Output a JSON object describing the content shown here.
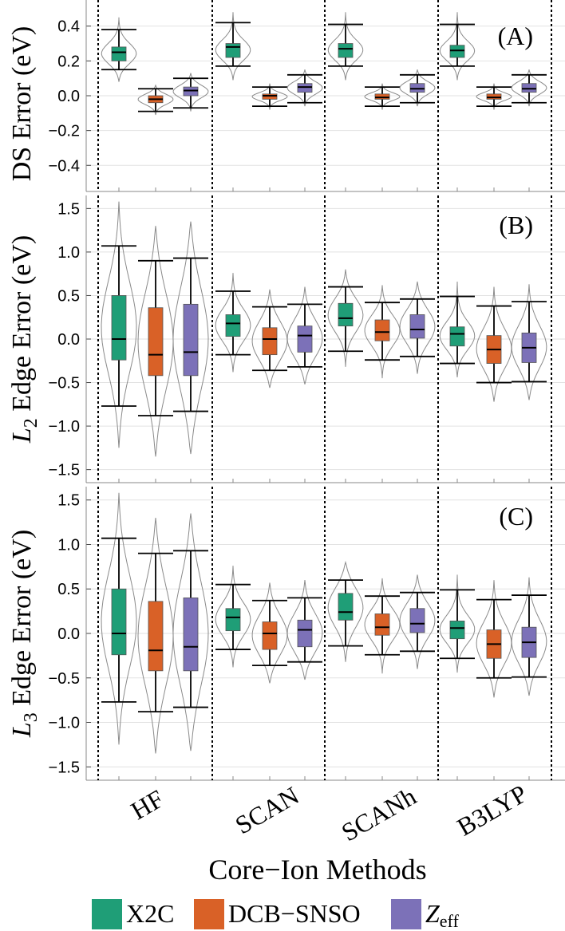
{
  "chart_data": [
    {
      "type": "box",
      "panel_label": "(A)",
      "ylabel": "DS Error (eV)",
      "ylim": [
        -0.55,
        0.55
      ],
      "yticks": [
        -0.4,
        -0.2,
        0.0,
        0.2,
        0.4
      ],
      "grid": true,
      "categories": [
        "HF",
        "SCAN",
        "SCANh",
        "B3LYP"
      ],
      "series": [
        {
          "name": "X2C",
          "boxes": [
            {
              "category": "HF",
              "whisker_low": 0.15,
              "q1": 0.2,
              "median": 0.25,
              "q3": 0.28,
              "whisker_high": 0.38,
              "violin_low": 0.08,
              "violin_high": 0.45
            },
            {
              "category": "SCAN",
              "whisker_low": 0.17,
              "q1": 0.22,
              "median": 0.28,
              "q3": 0.3,
              "whisker_high": 0.42,
              "violin_low": 0.09,
              "violin_high": 0.48
            },
            {
              "category": "SCANh",
              "whisker_low": 0.17,
              "q1": 0.22,
              "median": 0.27,
              "q3": 0.3,
              "whisker_high": 0.41,
              "violin_low": 0.09,
              "violin_high": 0.48
            },
            {
              "category": "B3LYP",
              "whisker_low": 0.17,
              "q1": 0.22,
              "median": 0.26,
              "q3": 0.29,
              "whisker_high": 0.41,
              "violin_low": 0.09,
              "violin_high": 0.48
            }
          ]
        },
        {
          "name": "DCB−SNSO",
          "boxes": [
            {
              "category": "HF",
              "whisker_low": -0.09,
              "q1": -0.04,
              "median": -0.02,
              "q3": 0.0,
              "whisker_high": 0.04,
              "violin_low": -0.11,
              "violin_high": 0.06
            },
            {
              "category": "SCAN",
              "whisker_low": -0.06,
              "q1": -0.02,
              "median": 0.0,
              "q3": 0.01,
              "whisker_high": 0.05,
              "violin_low": -0.08,
              "violin_high": 0.07
            },
            {
              "category": "SCANh",
              "whisker_low": -0.06,
              "q1": -0.02,
              "median": -0.01,
              "q3": 0.01,
              "whisker_high": 0.05,
              "violin_low": -0.08,
              "violin_high": 0.07
            },
            {
              "category": "B3LYP",
              "whisker_low": -0.06,
              "q1": -0.02,
              "median": -0.01,
              "q3": 0.01,
              "whisker_high": 0.05,
              "violin_low": -0.08,
              "violin_high": 0.07
            }
          ]
        },
        {
          "name": "Zeff",
          "boxes": [
            {
              "category": "HF",
              "whisker_low": -0.07,
              "q1": 0.0,
              "median": 0.03,
              "q3": 0.05,
              "whisker_high": 0.1,
              "violin_low": -0.09,
              "violin_high": 0.13
            },
            {
              "category": "SCAN",
              "whisker_low": -0.04,
              "q1": 0.02,
              "median": 0.05,
              "q3": 0.07,
              "whisker_high": 0.12,
              "violin_low": -0.06,
              "violin_high": 0.15
            },
            {
              "category": "SCANh",
              "whisker_low": -0.04,
              "q1": 0.02,
              "median": 0.04,
              "q3": 0.07,
              "whisker_high": 0.12,
              "violin_low": -0.06,
              "violin_high": 0.15
            },
            {
              "category": "B3LYP",
              "whisker_low": -0.04,
              "q1": 0.02,
              "median": 0.04,
              "q3": 0.07,
              "whisker_high": 0.12,
              "violin_low": -0.06,
              "violin_high": 0.15
            }
          ]
        }
      ]
    },
    {
      "type": "box",
      "panel_label": "(B)",
      "ylabel_main": "L",
      "ylabel_sub": "2",
      "ylabel_rest": " Edge Error (eV)",
      "ylim": [
        -1.65,
        1.65
      ],
      "yticks": [
        -1.5,
        -1.0,
        -0.5,
        0.0,
        0.5,
        1.0,
        1.5
      ],
      "grid": true,
      "categories": [
        "HF",
        "SCAN",
        "SCANh",
        "B3LYP"
      ],
      "series": [
        {
          "name": "X2C",
          "boxes": [
            {
              "category": "HF",
              "whisker_low": -0.77,
              "q1": -0.24,
              "median": 0.0,
              "q3": 0.5,
              "whisker_high": 1.07,
              "violin_low": -1.25,
              "violin_high": 1.58
            },
            {
              "category": "SCAN",
              "whisker_low": -0.18,
              "q1": 0.03,
              "median": 0.18,
              "q3": 0.28,
              "whisker_high": 0.55,
              "violin_low": -0.38,
              "violin_high": 0.76
            },
            {
              "category": "SCANh",
              "whisker_low": -0.14,
              "q1": 0.15,
              "median": 0.24,
              "q3": 0.41,
              "whisker_high": 0.6,
              "violin_low": -0.32,
              "violin_high": 0.8
            },
            {
              "category": "B3LYP",
              "whisker_low": -0.28,
              "q1": -0.08,
              "median": 0.06,
              "q3": 0.14,
              "whisker_high": 0.49,
              "violin_low": -0.44,
              "violin_high": 0.66
            }
          ]
        },
        {
          "name": "DCB−SNSO",
          "boxes": [
            {
              "category": "HF",
              "whisker_low": -0.88,
              "q1": -0.42,
              "median": -0.18,
              "q3": 0.36,
              "whisker_high": 0.9,
              "violin_low": -1.35,
              "violin_high": 1.3
            },
            {
              "category": "SCAN",
              "whisker_low": -0.36,
              "q1": -0.18,
              "median": 0.0,
              "q3": 0.13,
              "whisker_high": 0.37,
              "violin_low": -0.56,
              "violin_high": 0.57
            },
            {
              "category": "SCANh",
              "whisker_low": -0.24,
              "q1": -0.02,
              "median": 0.08,
              "q3": 0.22,
              "whisker_high": 0.42,
              "violin_low": -0.45,
              "violin_high": 0.62
            },
            {
              "category": "B3LYP",
              "whisker_low": -0.5,
              "q1": -0.28,
              "median": -0.12,
              "q3": 0.04,
              "whisker_high": 0.38,
              "violin_low": -0.72,
              "violin_high": 0.6
            }
          ]
        },
        {
          "name": "Zeff",
          "boxes": [
            {
              "category": "HF",
              "whisker_low": -0.83,
              "q1": -0.42,
              "median": -0.15,
              "q3": 0.4,
              "whisker_high": 0.93,
              "violin_low": -1.32,
              "violin_high": 1.35
            },
            {
              "category": "SCAN",
              "whisker_low": -0.32,
              "q1": -0.15,
              "median": 0.04,
              "q3": 0.15,
              "whisker_high": 0.4,
              "violin_low": -0.52,
              "violin_high": 0.6
            },
            {
              "category": "SCANh",
              "whisker_low": -0.2,
              "q1": 0.01,
              "median": 0.11,
              "q3": 0.28,
              "whisker_high": 0.46,
              "violin_low": -0.4,
              "violin_high": 0.66
            },
            {
              "category": "B3LYP",
              "whisker_low": -0.49,
              "q1": -0.27,
              "median": -0.1,
              "q3": 0.07,
              "whisker_high": 0.43,
              "violin_low": -0.7,
              "violin_high": 0.63
            }
          ]
        }
      ]
    },
    {
      "type": "box",
      "panel_label": "(C)",
      "ylabel_main": "L",
      "ylabel_sub": "3",
      "ylabel_rest": " Edge Error (eV)",
      "ylim": [
        -1.65,
        1.65
      ],
      "yticks": [
        -1.5,
        -1.0,
        -0.5,
        0.0,
        0.5,
        1.0,
        1.5
      ],
      "grid": true,
      "categories": [
        "HF",
        "SCAN",
        "SCANh",
        "B3LYP"
      ],
      "series": [
        {
          "name": "X2C",
          "boxes": [
            {
              "category": "HF",
              "whisker_low": -0.77,
              "q1": -0.24,
              "median": 0.0,
              "q3": 0.5,
              "whisker_high": 1.07,
              "violin_low": -1.25,
              "violin_high": 1.58
            },
            {
              "category": "SCAN",
              "whisker_low": -0.18,
              "q1": 0.03,
              "median": 0.18,
              "q3": 0.28,
              "whisker_high": 0.55,
              "violin_low": -0.38,
              "violin_high": 0.76
            },
            {
              "category": "SCANh",
              "whisker_low": -0.14,
              "q1": 0.15,
              "median": 0.24,
              "q3": 0.45,
              "whisker_high": 0.6,
              "violin_low": -0.32,
              "violin_high": 0.8
            },
            {
              "category": "B3LYP",
              "whisker_low": -0.28,
              "q1": -0.06,
              "median": 0.06,
              "q3": 0.14,
              "whisker_high": 0.49,
              "violin_low": -0.44,
              "violin_high": 0.66
            }
          ]
        },
        {
          "name": "DCB−SNSO",
          "boxes": [
            {
              "category": "HF",
              "whisker_low": -0.88,
              "q1": -0.42,
              "median": -0.19,
              "q3": 0.36,
              "whisker_high": 0.9,
              "violin_low": -1.35,
              "violin_high": 1.3
            },
            {
              "category": "SCAN",
              "whisker_low": -0.36,
              "q1": -0.18,
              "median": 0.0,
              "q3": 0.13,
              "whisker_high": 0.37,
              "violin_low": -0.56,
              "violin_high": 0.57
            },
            {
              "category": "SCANh",
              "whisker_low": -0.24,
              "q1": -0.02,
              "median": 0.07,
              "q3": 0.22,
              "whisker_high": 0.42,
              "violin_low": -0.45,
              "violin_high": 0.62
            },
            {
              "category": "B3LYP",
              "whisker_low": -0.5,
              "q1": -0.28,
              "median": -0.12,
              "q3": 0.04,
              "whisker_high": 0.38,
              "violin_low": -0.72,
              "violin_high": 0.6
            }
          ]
        },
        {
          "name": "Zeff",
          "boxes": [
            {
              "category": "HF",
              "whisker_low": -0.83,
              "q1": -0.42,
              "median": -0.15,
              "q3": 0.4,
              "whisker_high": 0.93,
              "violin_low": -1.32,
              "violin_high": 1.35
            },
            {
              "category": "SCAN",
              "whisker_low": -0.32,
              "q1": -0.15,
              "median": 0.04,
              "q3": 0.15,
              "whisker_high": 0.4,
              "violin_low": -0.52,
              "violin_high": 0.6
            },
            {
              "category": "SCANh",
              "whisker_low": -0.2,
              "q1": 0.01,
              "median": 0.11,
              "q3": 0.28,
              "whisker_high": 0.46,
              "violin_low": -0.4,
              "violin_high": 0.66
            },
            {
              "category": "B3LYP",
              "whisker_low": -0.49,
              "q1": -0.27,
              "median": -0.1,
              "q3": 0.07,
              "whisker_high": 0.43,
              "violin_low": -0.7,
              "violin_high": 0.63
            }
          ]
        }
      ]
    }
  ],
  "xlabel": "Core−Ion Methods",
  "legend": [
    {
      "key": "x2c",
      "label": "X2C",
      "color": "#1f9e77"
    },
    {
      "key": "dcb",
      "label": "DCB−SNSO",
      "color": "#d96127"
    },
    {
      "key": "zeff",
      "label_main": "Z",
      "label_sub": "eff",
      "color": "#7c71b8"
    }
  ]
}
